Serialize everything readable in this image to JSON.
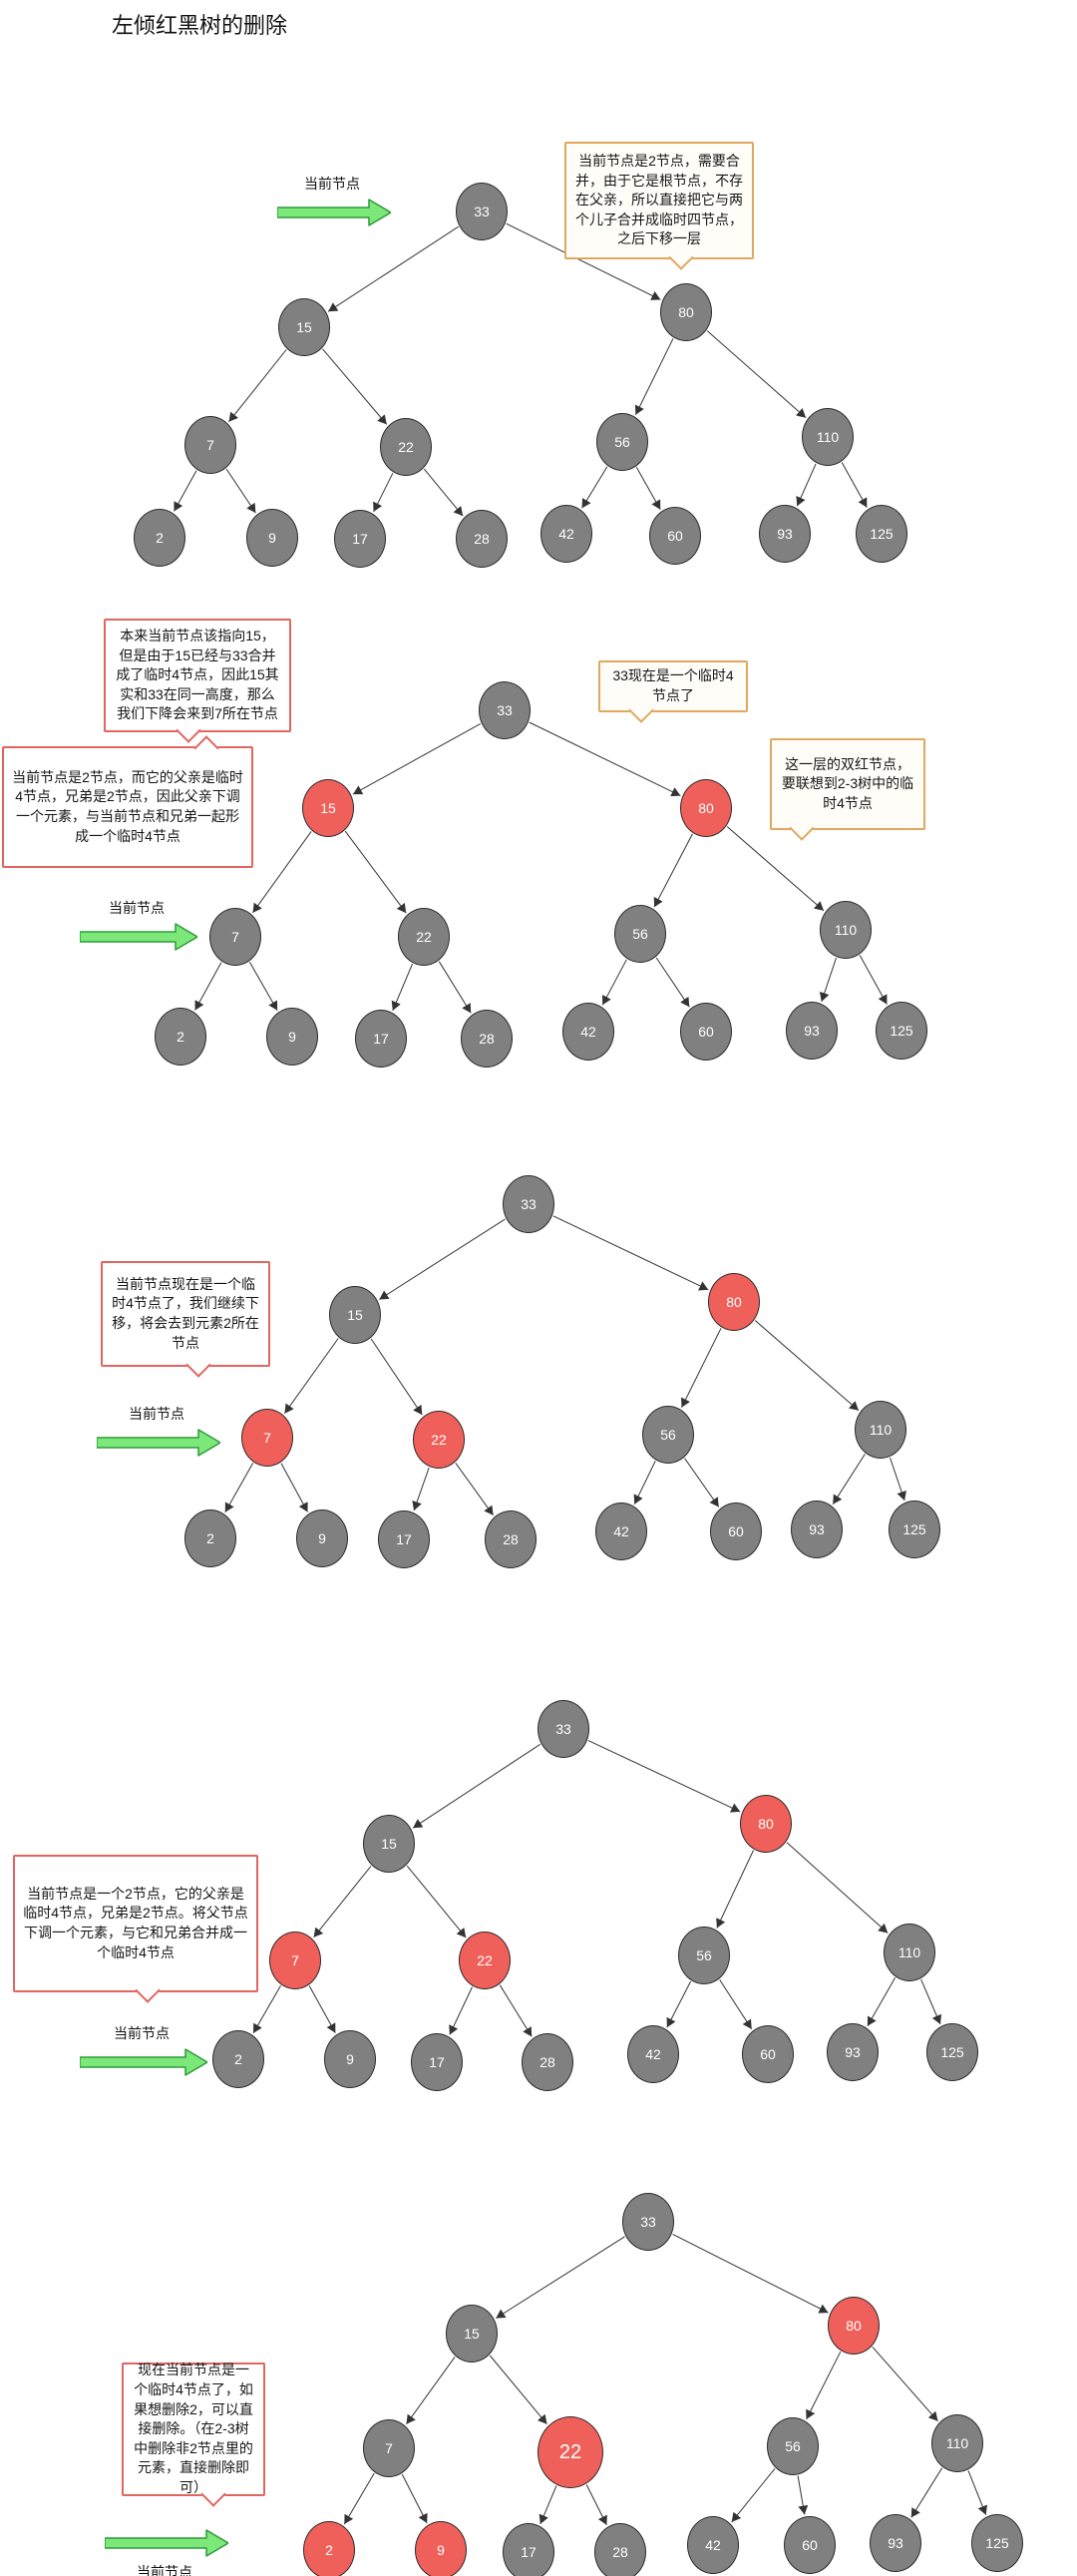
{
  "title": "左倾红黑树的删除",
  "pointer_label": "当前节点",
  "colors": {
    "node_gray": "#808080",
    "node_red": "#F0605A",
    "node_border": "#2b2b2b",
    "node_text": "#ffffff",
    "edge": "#333333",
    "callout_red_border": "#E16560",
    "callout_orange_border": "#E2A75F",
    "arrow_green": "#7DE87A",
    "arrow_green_border": "#2F9B38",
    "title_text": "#111111"
  },
  "tree": {
    "node_values": [
      "33",
      "15",
      "80",
      "7",
      "22",
      "56",
      "110",
      "2",
      "9",
      "17",
      "28",
      "42",
      "60",
      "93",
      "125"
    ],
    "edges": [
      [
        "33",
        "15"
      ],
      [
        "33",
        "80"
      ],
      [
        "15",
        "7"
      ],
      [
        "15",
        "22"
      ],
      [
        "80",
        "56"
      ],
      [
        "80",
        "110"
      ],
      [
        "7",
        "2"
      ],
      [
        "7",
        "9"
      ],
      [
        "22",
        "17"
      ],
      [
        "22",
        "28"
      ],
      [
        "56",
        "42"
      ],
      [
        "56",
        "60"
      ],
      [
        "110",
        "93"
      ],
      [
        "110",
        "125"
      ]
    ]
  },
  "sections": [
    {
      "id": "step1",
      "red_nodes": [],
      "big_nodes": [],
      "pointer_target": "33",
      "callouts": [
        {
          "style": "orange",
          "text": "当前节点是2节点，需要合并，由于它是根节点，不存在父亲，所以直接把它与两个儿子合并成临时四节点，之后下移一层"
        }
      ]
    },
    {
      "id": "step2",
      "red_nodes": [
        "15",
        "80"
      ],
      "big_nodes": [],
      "pointer_target": "7",
      "callouts": [
        {
          "style": "red",
          "text": "本来当前节点该指向15，但是由于15已经与33合并成了临时4节点，因此15其实和33在同一高度，那么我们下降会来到7所在节点"
        },
        {
          "style": "red",
          "text": "当前节点是2节点，而它的父亲是临时4节点，兄弟是2节点，因此父亲下调一个元素，与当前节点和兄弟一起形成一个临时4节点"
        },
        {
          "style": "orange",
          "text": "33现在是一个临时4节点了"
        },
        {
          "style": "orange",
          "text": "这一层的双红节点，要联想到2-3树中的临时4节点"
        }
      ]
    },
    {
      "id": "step3",
      "red_nodes": [
        "80",
        "7",
        "22"
      ],
      "big_nodes": [],
      "pointer_target": "7",
      "callouts": [
        {
          "style": "red",
          "text": "当前节点现在是一个临时4节点了，我们继续下移，将会去到元素2所在节点"
        }
      ]
    },
    {
      "id": "step4",
      "red_nodes": [
        "80",
        "7",
        "22"
      ],
      "big_nodes": [],
      "pointer_target": "2",
      "callouts": [
        {
          "style": "red",
          "text": "当前节点是一个2节点，它的父亲是临时4节点，兄弟是2节点。将父节点下调一个元素，与它和兄弟合并成一个临时4节点"
        }
      ]
    },
    {
      "id": "step5",
      "red_nodes": [
        "80",
        "22",
        "2",
        "9"
      ],
      "big_nodes": [
        "22"
      ],
      "pointer_target": "2",
      "callouts": [
        {
          "style": "red",
          "text": "现在当前节点是一个临时4节点了，如果想删除2，可以直接删除。（在2-3树中删除非2节点里的元素，直接删除即可）"
        }
      ]
    }
  ]
}
